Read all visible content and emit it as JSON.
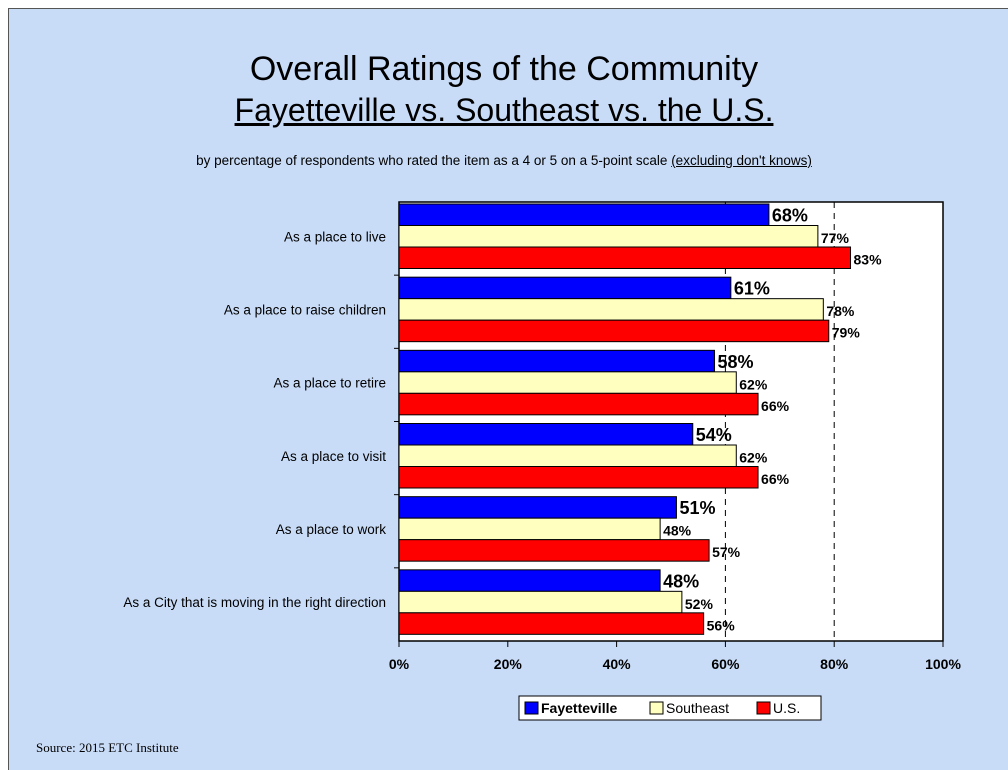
{
  "title_line1": "Overall Ratings of the Community",
  "title_line2": "Fayetteville vs. Southeast vs. the U.S.",
  "subtitle_main": "by percentage of respondents who rated the item as a 4 or 5 on a 5-point scale ",
  "subtitle_note": "(excluding don't knows)",
  "source": "Source:  2015 ETC Institute",
  "colors": {
    "background": "#c9dcf7",
    "fayetteville": "#0000ff",
    "southeast": "#ffffc0",
    "us": "#ff0000"
  },
  "chart_data": {
    "type": "bar",
    "orientation": "horizontal",
    "categories": [
      "As a place to live",
      "As a place to raise children",
      "As a place to retire",
      "As a place to visit",
      "As a place to work",
      "As a City that is moving in the right direction"
    ],
    "series": [
      {
        "name": "Fayetteville",
        "values": [
          68,
          61,
          58,
          54,
          51,
          48
        ],
        "labels": [
          "68%",
          "61%",
          "58%",
          "54%",
          "51%",
          "48%"
        ]
      },
      {
        "name": "Southeast",
        "values": [
          77,
          78,
          62,
          62,
          48,
          52
        ],
        "labels": [
          "77%",
          "78%",
          "62%",
          "62%",
          "48%",
          "52%"
        ]
      },
      {
        "name": "U.S.",
        "values": [
          83,
          79,
          66,
          66,
          57,
          56
        ],
        "labels": [
          "83%",
          "79%",
          "66%",
          "66%",
          "57%",
          "56%"
        ]
      }
    ],
    "xlim": [
      0,
      100
    ],
    "xticks": [
      "0%",
      "20%",
      "40%",
      "60%",
      "80%",
      "100%"
    ],
    "reference_lines": [
      60,
      80
    ],
    "legend_position": "bottom"
  }
}
